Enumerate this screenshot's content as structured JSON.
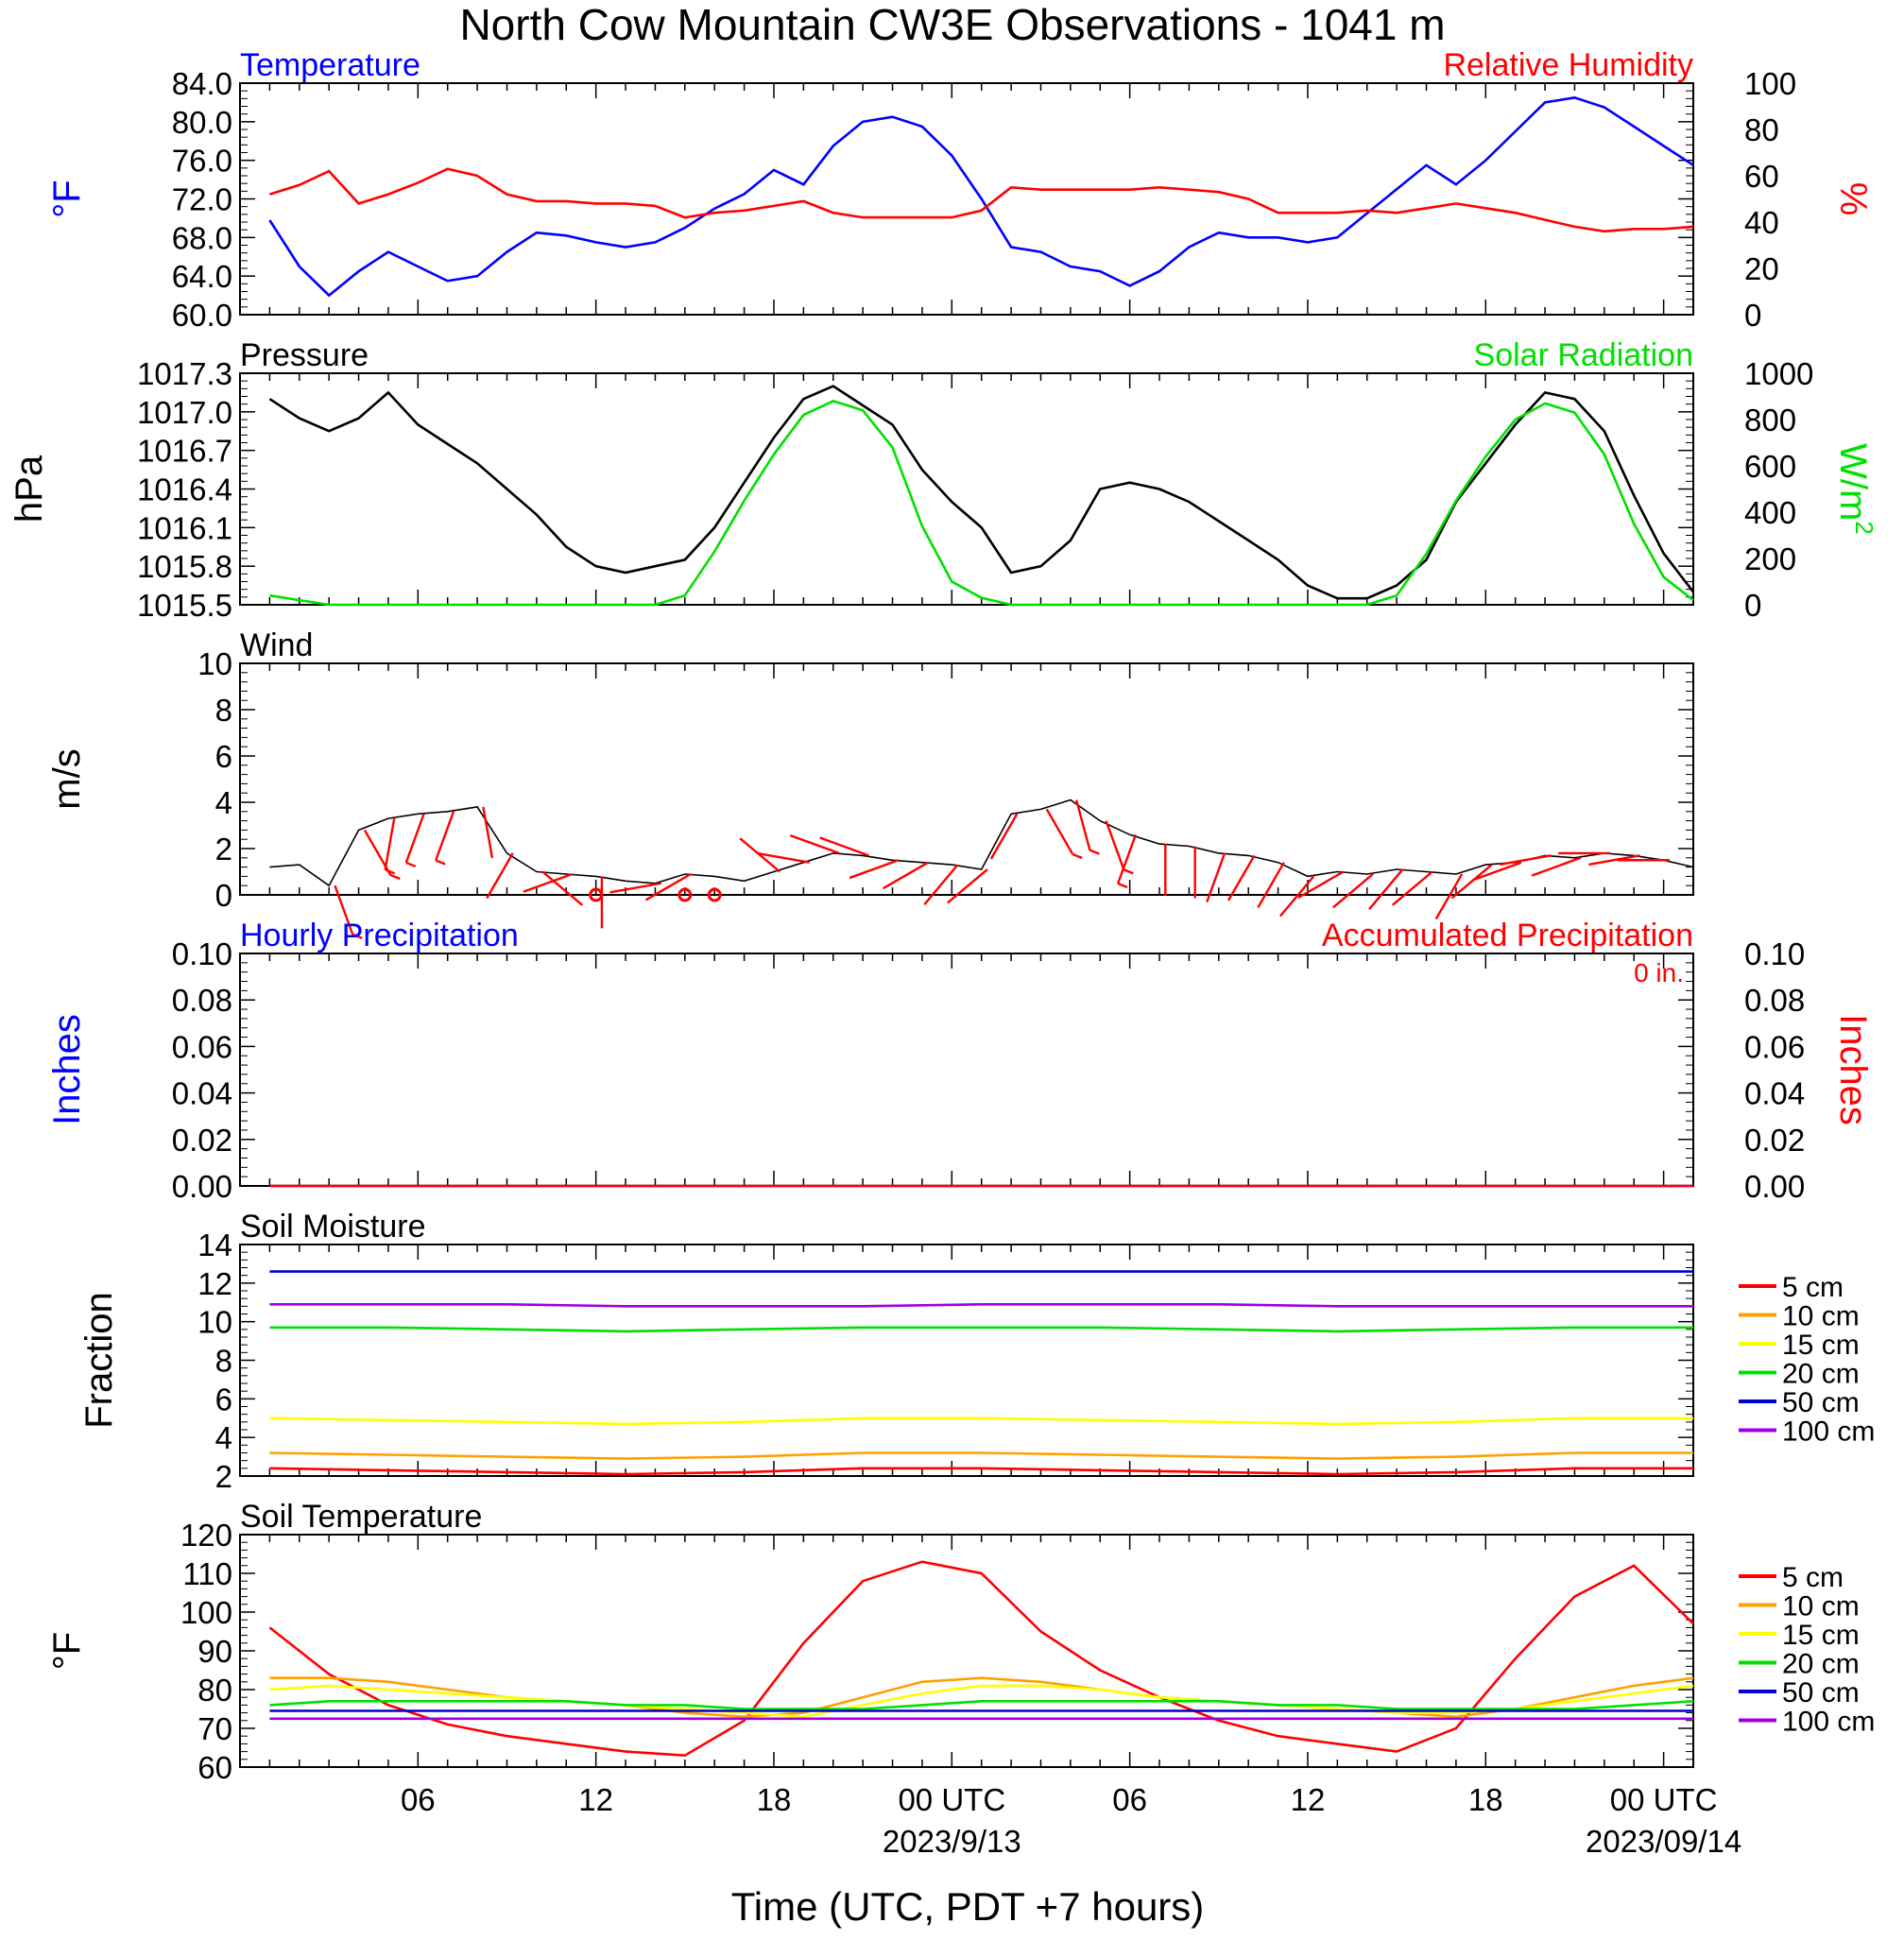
{
  "title": "North Cow Mountain CW3E Observations - 1041 m",
  "xlabel": "Time (UTC, PDT +7 hours)",
  "x_ticks": [
    "06",
    "12",
    "18",
    "00 UTC",
    "06",
    "12",
    "18",
    "00 UTC"
  ],
  "x_dates": [
    "2023/9/13",
    "2023/09/14"
  ],
  "colors": {
    "blue": "#0000ff",
    "red": "#ff0000",
    "green": "#00e000",
    "black": "#000000",
    "orange": "#ffa000",
    "yellow": "#ffff00",
    "purple": "#a000e0",
    "darkblue": "#0000cc"
  },
  "chart_data": [
    {
      "type": "line",
      "title": "Temperature",
      "title_right": "Relative Humidity",
      "ylabel": "°F",
      "ylabel_right": "%",
      "ylim": [
        60,
        84
      ],
      "ylim_right": [
        0,
        100
      ],
      "yticks": [
        "84.0",
        "80.0",
        "76.0",
        "72.0",
        "68.0",
        "64.0",
        "60.0"
      ],
      "yticks_right": [
        "100",
        "80",
        "60",
        "40",
        "20",
        "0"
      ],
      "x_hours": [
        1,
        2,
        3,
        4,
        5,
        6,
        7,
        8,
        9,
        10,
        11,
        12,
        13,
        14,
        15,
        16,
        17,
        18,
        19,
        20,
        21,
        22,
        23,
        24,
        25,
        26,
        27,
        28,
        29,
        30,
        31,
        32,
        33,
        34,
        35,
        36,
        37,
        38,
        39,
        40,
        41,
        42,
        43,
        44,
        45,
        46,
        47,
        48,
        49
      ],
      "series": [
        {
          "name": "Temperature",
          "axis": "left",
          "color": "#0000ff",
          "values": [
            69.8,
            65.0,
            62.0,
            64.5,
            66.5,
            65.0,
            63.5,
            64.0,
            66.5,
            68.5,
            68.2,
            67.5,
            67.0,
            67.5,
            69.0,
            71.0,
            72.5,
            75.0,
            73.5,
            77.5,
            80.0,
            80.5,
            79.5,
            76.5,
            72.0,
            67.0,
            66.5,
            65.0,
            64.5,
            63.0,
            64.5,
            67.0,
            68.5,
            68.0,
            68.0,
            67.5,
            68.0,
            70.5,
            73.0,
            75.5,
            73.5,
            76.0,
            79.0,
            82.0,
            82.5,
            81.5,
            79.5,
            77.5,
            75.5
          ]
        },
        {
          "name": "Relative Humidity",
          "axis": "right",
          "color": "#ff0000",
          "values": [
            52,
            56,
            62,
            48,
            52,
            57,
            63,
            60,
            52,
            49,
            49,
            48,
            48,
            47,
            42,
            44,
            45,
            47,
            49,
            44,
            42,
            42,
            42,
            42,
            45,
            55,
            54,
            54,
            54,
            54,
            55,
            54,
            53,
            50,
            44,
            44,
            44,
            45,
            44,
            46,
            48,
            46,
            44,
            41,
            38,
            36,
            37,
            37,
            38
          ]
        }
      ]
    },
    {
      "type": "line",
      "title": "Pressure",
      "title_right": "Solar Radiation",
      "ylabel": "hPa",
      "ylabel_right": "W/m",
      "ylabel_right_sup": "2",
      "ylim": [
        1015.5,
        1017.3
      ],
      "ylim_right": [
        0,
        1000
      ],
      "yticks": [
        "1017.3",
        "1017.0",
        "1016.7",
        "1016.4",
        "1016.1",
        "1015.8",
        "1015.5"
      ],
      "yticks_right": [
        "1000",
        "800",
        "600",
        "400",
        "200",
        "0"
      ],
      "x_hours": [
        1,
        2,
        3,
        4,
        5,
        6,
        7,
        8,
        9,
        10,
        11,
        12,
        13,
        14,
        15,
        16,
        17,
        18,
        19,
        20,
        21,
        22,
        23,
        24,
        25,
        26,
        27,
        28,
        29,
        30,
        31,
        32,
        33,
        34,
        35,
        36,
        37,
        38,
        39,
        40,
        41,
        42,
        43,
        44,
        45,
        46,
        47,
        48,
        49
      ],
      "series": [
        {
          "name": "Pressure",
          "axis": "left",
          "color": "#000000",
          "values": [
            1017.1,
            1016.95,
            1016.85,
            1016.95,
            1017.15,
            1016.9,
            1016.75,
            1016.6,
            1016.4,
            1016.2,
            1015.95,
            1015.8,
            1015.75,
            1015.8,
            1015.85,
            1016.1,
            1016.45,
            1016.8,
            1017.1,
            1017.2,
            1017.05,
            1016.9,
            1016.55,
            1016.3,
            1016.1,
            1015.75,
            1015.8,
            1016.0,
            1016.4,
            1016.45,
            1016.4,
            1016.3,
            1016.15,
            1016.0,
            1015.85,
            1015.65,
            1015.55,
            1015.55,
            1015.65,
            1015.85,
            1016.3,
            1016.6,
            1016.9,
            1017.15,
            1017.1,
            1016.85,
            1016.35,
            1015.9,
            1015.6
          ]
        },
        {
          "name": "Solar Radiation",
          "axis": "right",
          "color": "#00e000",
          "values": [
            40,
            20,
            0,
            0,
            0,
            0,
            0,
            0,
            0,
            0,
            0,
            0,
            0,
            0,
            40,
            230,
            450,
            650,
            820,
            880,
            840,
            680,
            340,
            100,
            30,
            0,
            0,
            0,
            0,
            0,
            0,
            0,
            0,
            0,
            0,
            0,
            0,
            0,
            40,
            220,
            450,
            640,
            800,
            870,
            830,
            650,
            350,
            120,
            20
          ]
        }
      ]
    },
    {
      "type": "line",
      "title": "Wind",
      "ylabel": "m/s",
      "ylim": [
        0,
        10
      ],
      "yticks": [
        "10",
        "8",
        "6",
        "4",
        "2",
        "0"
      ],
      "x_hours": [
        1,
        2,
        3,
        4,
        5,
        6,
        7,
        8,
        9,
        10,
        11,
        12,
        13,
        14,
        15,
        16,
        17,
        18,
        19,
        20,
        21,
        22,
        23,
        24,
        25,
        26,
        27,
        28,
        29,
        30,
        31,
        32,
        33,
        34,
        35,
        36,
        37,
        38,
        39,
        40,
        41,
        42,
        43,
        44,
        45,
        46,
        47,
        48,
        49
      ],
      "series": [
        {
          "name": "Wind",
          "axis": "left",
          "color": "#000000",
          "values": [
            1.2,
            1.3,
            0.4,
            2.8,
            3.3,
            3.5,
            3.6,
            3.8,
            1.8,
            1.0,
            0.9,
            0.8,
            0.6,
            0.5,
            0.9,
            0.8,
            0.6,
            1.0,
            1.4,
            1.8,
            1.7,
            1.5,
            1.4,
            1.3,
            1.1,
            3.5,
            3.7,
            4.1,
            3.2,
            2.6,
            2.2,
            2.1,
            1.8,
            1.7,
            1.4,
            0.8,
            1.0,
            0.9,
            1.1,
            1.0,
            0.9,
            1.3,
            1.4,
            1.7,
            1.6,
            1.8,
            1.7,
            1.5,
            1.2
          ]
        }
      ],
      "barb_hours": [
        3.2,
        4.2,
        5.2,
        6.2,
        7.2,
        8.2,
        9.2,
        10.2,
        11.2,
        12.2,
        13.2,
        14.2,
        15.2,
        16.2,
        17.2,
        18.2,
        19.2,
        20.2,
        21.2,
        22.2,
        23.2,
        24.2,
        25.2,
        26.2,
        27.2,
        28.2,
        29.2,
        30.2,
        31.2,
        32.2,
        33.2,
        34.2,
        35.2,
        36.2,
        37.2,
        38.2,
        39.2,
        40.2,
        41.2,
        42.2,
        43.2,
        44.2,
        45.2,
        46.2,
        47.2,
        48.2
      ],
      "barb_speed": [
        3,
        3,
        3,
        3.5,
        3.5,
        2,
        1.5,
        1.2,
        1,
        1.2,
        0,
        1.0,
        0.8,
        0,
        0,
        1.2,
        1.3,
        1.4,
        1.5,
        1.6,
        1.2,
        1.1,
        1.0,
        1.3,
        3.5,
        3.8,
        4.0,
        2.5,
        2.1,
        2.0,
        2.0,
        1.8,
        1.5,
        1.4,
        1.2,
        1.0,
        1.0,
        1.0,
        1.1,
        1.0,
        1.2,
        1.4,
        1.5,
        1.5,
        1.6,
        1.4
      ],
      "barb_dir": [
        160,
        150,
        190,
        200,
        200,
        170,
        210,
        130,
        250,
        180,
        0,
        260,
        240,
        0,
        0,
        310,
        280,
        290,
        290,
        250,
        240,
        220,
        230,
        210,
        150,
        165,
        160,
        200,
        180,
        180,
        200,
        210,
        210,
        220,
        240,
        230,
        220,
        230,
        210,
        230,
        250,
        260,
        250,
        270,
        260,
        270
      ],
      "calm_hours": [
        12.0,
        15.0,
        16.0
      ]
    },
    {
      "type": "line",
      "title": "Hourly Precipitation",
      "title_right": "Accumulated Precipitation",
      "annotation": "0 in.",
      "ylabel": "Inches",
      "ylabel_right": "Inches",
      "ylim": [
        0,
        0.1
      ],
      "ylim_right": [
        0,
        0.1
      ],
      "yticks": [
        "0.10",
        "0.08",
        "0.06",
        "0.04",
        "0.02",
        "0.00"
      ],
      "yticks_right": [
        "0.10",
        "0.08",
        "0.06",
        "0.04",
        "0.02",
        "0.00"
      ],
      "x_hours": [
        1,
        49
      ],
      "series": [
        {
          "name": "Hourly Precipitation",
          "axis": "left",
          "color": "#0000ff",
          "values": [
            0,
            0
          ]
        },
        {
          "name": "Accumulated Precipitation",
          "axis": "right",
          "color": "#ff0000",
          "values": [
            0,
            0
          ]
        }
      ]
    },
    {
      "type": "line",
      "title": "Soil Moisture",
      "ylabel": "Fraction",
      "ylim": [
        2,
        14
      ],
      "yticks": [
        "14",
        "12",
        "10",
        "8",
        "6",
        "4",
        "2"
      ],
      "x_hours": [
        1,
        5,
        9,
        13,
        17,
        21,
        25,
        29,
        33,
        37,
        41,
        45,
        49
      ],
      "legend": [
        "5 cm",
        "10 cm",
        "15 cm",
        "20 cm",
        "50 cm",
        "100 cm"
      ],
      "series": [
        {
          "name": "5 cm",
          "axis": "left",
          "color": "#ff0000",
          "values": [
            2.4,
            2.3,
            2.2,
            2.1,
            2.2,
            2.4,
            2.4,
            2.3,
            2.2,
            2.1,
            2.2,
            2.4,
            2.4
          ]
        },
        {
          "name": "10 cm",
          "axis": "left",
          "color": "#ffa000",
          "values": [
            3.2,
            3.1,
            3.0,
            2.9,
            3.0,
            3.2,
            3.2,
            3.1,
            3.0,
            2.9,
            3.0,
            3.2,
            3.2
          ]
        },
        {
          "name": "15 cm",
          "axis": "left",
          "color": "#ffff00",
          "values": [
            5.0,
            4.9,
            4.8,
            4.7,
            4.8,
            5.0,
            5.0,
            4.9,
            4.8,
            4.7,
            4.8,
            5.0,
            5.0
          ]
        },
        {
          "name": "20 cm",
          "axis": "left",
          "color": "#00e000",
          "values": [
            9.7,
            9.7,
            9.6,
            9.5,
            9.6,
            9.7,
            9.7,
            9.7,
            9.6,
            9.5,
            9.6,
            9.7,
            9.7
          ]
        },
        {
          "name": "50 cm",
          "axis": "left",
          "color": "#0000cc",
          "values": [
            12.6,
            12.6,
            12.6,
            12.6,
            12.6,
            12.6,
            12.6,
            12.6,
            12.6,
            12.6,
            12.6,
            12.6,
            12.6
          ]
        },
        {
          "name": "100 cm",
          "axis": "left",
          "color": "#a000e0",
          "values": [
            10.9,
            10.9,
            10.9,
            10.8,
            10.8,
            10.8,
            10.9,
            10.9,
            10.9,
            10.8,
            10.8,
            10.8,
            10.8
          ]
        }
      ]
    },
    {
      "type": "line",
      "title": "Soil Temperature",
      "ylabel": "°F",
      "ylim": [
        60,
        120
      ],
      "yticks": [
        "120",
        "110",
        "100",
        "90",
        "80",
        "70",
        "60"
      ],
      "x_hours": [
        1,
        3,
        5,
        7,
        9,
        11,
        13,
        15,
        17,
        19,
        21,
        23,
        25,
        27,
        29,
        31,
        33,
        35,
        37,
        39,
        41,
        43,
        45,
        47,
        49
      ],
      "legend": [
        "5 cm",
        "10 cm",
        "15 cm",
        "20 cm",
        "50 cm",
        "100 cm"
      ],
      "series": [
        {
          "name": "5 cm",
          "axis": "left",
          "color": "#ff0000",
          "values": [
            96,
            84,
            76,
            71,
            68,
            66,
            64,
            63,
            72,
            92,
            108,
            113,
            110,
            95,
            85,
            78,
            72,
            68,
            66,
            64,
            70,
            88,
            104,
            112,
            97
          ]
        },
        {
          "name": "10 cm",
          "axis": "left",
          "color": "#ffa000",
          "values": [
            83,
            83,
            82,
            80,
            78,
            77,
            76,
            74,
            73,
            74,
            78,
            82,
            83,
            82,
            80,
            78,
            77,
            76,
            75,
            74,
            73,
            75,
            78,
            81,
            83
          ]
        },
        {
          "name": "15 cm",
          "axis": "left",
          "color": "#ffff00",
          "values": [
            80,
            81,
            80,
            79,
            78,
            77,
            76,
            75,
            74,
            73,
            76,
            79,
            81,
            81,
            80,
            78,
            77,
            76,
            75,
            74,
            74,
            75,
            77,
            79,
            81
          ]
        },
        {
          "name": "20 cm",
          "axis": "left",
          "color": "#00e000",
          "values": [
            76,
            77,
            77,
            77,
            77,
            77,
            76,
            76,
            75,
            75,
            75,
            76,
            77,
            77,
            77,
            77,
            77,
            76,
            76,
            75,
            75,
            75,
            75,
            76,
            77
          ]
        },
        {
          "name": "50 cm",
          "axis": "left",
          "color": "#0000cc",
          "values": [
            74.5,
            74.5,
            74.5,
            74.5,
            74.5,
            74.5,
            74.5,
            74.5,
            74.5,
            74.5,
            74.5,
            74.5,
            74.5,
            74.5,
            74.5,
            74.5,
            74.5,
            74.5,
            74.5,
            74.5,
            74.5,
            74.5,
            74.5,
            74.5,
            74.5
          ]
        },
        {
          "name": "100 cm",
          "axis": "left",
          "color": "#a000e0",
          "values": [
            72.5,
            72.5,
            72.5,
            72.5,
            72.5,
            72.5,
            72.5,
            72.5,
            72.5,
            72.5,
            72.5,
            72.5,
            72.5,
            72.5,
            72.5,
            72.5,
            72.5,
            72.5,
            72.5,
            72.5,
            72.5,
            72.5,
            72.5,
            72.5,
            72.5
          ]
        }
      ]
    }
  ]
}
